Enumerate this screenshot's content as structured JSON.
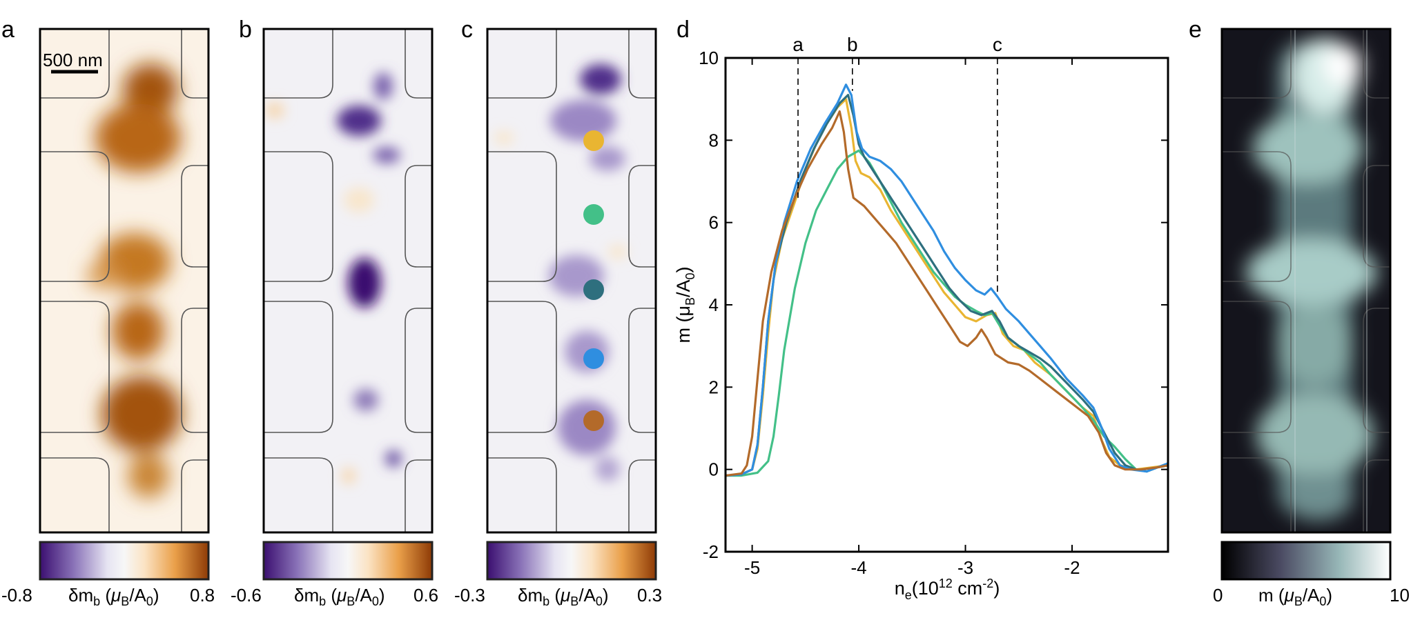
{
  "panels": {
    "a": {
      "label": "a",
      "scalebar": "500 nm",
      "cb_min": "-0.8",
      "cb_max": "0.8",
      "cb_label": "δm",
      "cb_sub": "b",
      "cb_unit_open": " (",
      "cb_mu": "μ",
      "cb_mu_sub": "B",
      "cb_slash": "/A",
      "cb_zero": "0",
      "cb_close": ")"
    },
    "b": {
      "label": "b",
      "cb_min": "-0.6",
      "cb_max": "0.6",
      "cb_label": "δm",
      "cb_sub": "b",
      "cb_unit_open": " (",
      "cb_mu": "μ",
      "cb_mu_sub": "B",
      "cb_slash": "/A",
      "cb_zero": "0",
      "cb_close": ")"
    },
    "c": {
      "label": "c",
      "cb_min": "-0.3",
      "cb_max": "0.3",
      "cb_label": "δm",
      "cb_sub": "b",
      "cb_unit_open": " (",
      "cb_mu": "μ",
      "cb_mu_sub": "B",
      "cb_slash": "/A",
      "cb_zero": "0",
      "cb_close": ")"
    },
    "d": {
      "label": "d"
    },
    "e": {
      "label": "e",
      "cb_min": "0",
      "cb_max": "10",
      "cb_label": "m",
      "cb_unit_open": " (",
      "cb_mu": "μ",
      "cb_mu_sub": "B",
      "cb_slash": "/A",
      "cb_zero": "0",
      "cb_close": ")"
    }
  },
  "colors": {
    "orange_dark": "#b4560c",
    "purple_dark": "#3b0f70",
    "bone_light": "#e8f5f2",
    "axis": "#000000"
  },
  "chart_data": {
    "type": "line",
    "xlim": [
      -5.25,
      -1.1
    ],
    "ylim": [
      -2,
      10
    ],
    "xticks": [
      -5,
      -4,
      -3,
      -2
    ],
    "xtick_labels": [
      "-5",
      "-4",
      "-3",
      "-2"
    ],
    "yticks": [
      -2,
      0,
      2,
      4,
      6,
      8,
      10
    ],
    "ytick_labels": [
      "-2",
      "0",
      "2",
      "4",
      "6",
      "8",
      "10"
    ],
    "xlabel": {
      "main": "n",
      "sub": "e",
      "rest": "(10",
      "sup": "12",
      "unit": " cm",
      "sup2": "-2",
      "close": ")"
    },
    "ylabel": {
      "main": "m (μ",
      "sub": "B",
      "rest": "/A",
      "sub2": "0",
      "close": ")"
    },
    "markers": [
      {
        "label": "a",
        "x": -4.57,
        "y_top": 6.6
      },
      {
        "label": "b",
        "x": -4.06,
        "y_top": 9.2
      },
      {
        "label": "c",
        "x": -2.7,
        "y_top": 4.3
      }
    ],
    "series": [
      {
        "name": "yellow",
        "color": "#e9b532",
        "points": [
          [
            -5.25,
            -0.15
          ],
          [
            -5.1,
            -0.12
          ],
          [
            -5.0,
            0.0
          ],
          [
            -4.95,
            0.5
          ],
          [
            -4.9,
            1.8
          ],
          [
            -4.85,
            3.3
          ],
          [
            -4.8,
            4.6
          ],
          [
            -4.72,
            5.6
          ],
          [
            -4.6,
            6.5
          ],
          [
            -4.5,
            7.3
          ],
          [
            -4.4,
            7.9
          ],
          [
            -4.3,
            8.4
          ],
          [
            -4.2,
            8.8
          ],
          [
            -4.12,
            9.0
          ],
          [
            -4.07,
            8.3
          ],
          [
            -4.03,
            7.5
          ],
          [
            -3.98,
            7.2
          ],
          [
            -3.9,
            7.1
          ],
          [
            -3.8,
            6.8
          ],
          [
            -3.7,
            6.3
          ],
          [
            -3.6,
            5.9
          ],
          [
            -3.5,
            5.5
          ],
          [
            -3.4,
            5.1
          ],
          [
            -3.3,
            4.7
          ],
          [
            -3.2,
            4.3
          ],
          [
            -3.1,
            4.0
          ],
          [
            -3.0,
            3.7
          ],
          [
            -2.9,
            3.6
          ],
          [
            -2.8,
            3.75
          ],
          [
            -2.72,
            3.8
          ],
          [
            -2.65,
            3.3
          ],
          [
            -2.55,
            3.0
          ],
          [
            -2.45,
            2.9
          ],
          [
            -2.35,
            2.6
          ],
          [
            -2.2,
            2.3
          ],
          [
            -2.05,
            1.9
          ],
          [
            -1.9,
            1.5
          ],
          [
            -1.8,
            1.3
          ],
          [
            -1.72,
            0.7
          ],
          [
            -1.65,
            0.3
          ],
          [
            -1.55,
            0.1
          ],
          [
            -1.4,
            0.0
          ],
          [
            -1.25,
            0.05
          ],
          [
            -1.1,
            0.1
          ]
        ]
      },
      {
        "name": "green",
        "color": "#43c088",
        "points": [
          [
            -5.25,
            -0.15
          ],
          [
            -5.1,
            -0.15
          ],
          [
            -4.95,
            -0.08
          ],
          [
            -4.85,
            0.2
          ],
          [
            -4.8,
            0.8
          ],
          [
            -4.75,
            1.8
          ],
          [
            -4.7,
            2.9
          ],
          [
            -4.6,
            4.4
          ],
          [
            -4.5,
            5.5
          ],
          [
            -4.4,
            6.3
          ],
          [
            -4.3,
            6.8
          ],
          [
            -4.2,
            7.3
          ],
          [
            -4.1,
            7.6
          ],
          [
            -4.0,
            7.75
          ],
          [
            -3.9,
            7.45
          ],
          [
            -3.8,
            7.0
          ],
          [
            -3.7,
            6.5
          ],
          [
            -3.6,
            6.0
          ],
          [
            -3.5,
            5.6
          ],
          [
            -3.4,
            5.2
          ],
          [
            -3.3,
            4.8
          ],
          [
            -3.2,
            4.5
          ],
          [
            -3.1,
            4.2
          ],
          [
            -3.0,
            4.0
          ],
          [
            -2.9,
            3.85
          ],
          [
            -2.82,
            3.75
          ],
          [
            -2.75,
            3.8
          ],
          [
            -2.68,
            3.5
          ],
          [
            -2.6,
            3.2
          ],
          [
            -2.5,
            3.0
          ],
          [
            -2.4,
            2.8
          ],
          [
            -2.3,
            2.6
          ],
          [
            -2.2,
            2.3
          ],
          [
            -2.05,
            1.9
          ],
          [
            -1.9,
            1.5
          ],
          [
            -1.8,
            1.2
          ],
          [
            -1.7,
            0.8
          ],
          [
            -1.6,
            0.55
          ],
          [
            -1.5,
            0.25
          ],
          [
            -1.4,
            0.0
          ],
          [
            -1.3,
            -0.05
          ],
          [
            -1.2,
            0.05
          ],
          [
            -1.1,
            0.1
          ]
        ]
      },
      {
        "name": "teal",
        "color": "#2e6f7e",
        "points": [
          [
            -5.25,
            -0.15
          ],
          [
            -5.1,
            -0.12
          ],
          [
            -5.0,
            0.0
          ],
          [
            -4.95,
            0.6
          ],
          [
            -4.9,
            2.0
          ],
          [
            -4.85,
            3.6
          ],
          [
            -4.78,
            5.0
          ],
          [
            -4.68,
            6.0
          ],
          [
            -4.55,
            7.0
          ],
          [
            -4.42,
            7.8
          ],
          [
            -4.3,
            8.4
          ],
          [
            -4.18,
            8.9
          ],
          [
            -4.1,
            9.1
          ],
          [
            -4.05,
            8.6
          ],
          [
            -4.0,
            7.9
          ],
          [
            -3.95,
            7.6
          ],
          [
            -3.85,
            7.2
          ],
          [
            -3.75,
            6.8
          ],
          [
            -3.65,
            6.4
          ],
          [
            -3.55,
            6.0
          ],
          [
            -3.45,
            5.6
          ],
          [
            -3.35,
            5.2
          ],
          [
            -3.25,
            4.8
          ],
          [
            -3.15,
            4.4
          ],
          [
            -3.05,
            4.1
          ],
          [
            -2.95,
            3.85
          ],
          [
            -2.85,
            3.75
          ],
          [
            -2.75,
            3.85
          ],
          [
            -2.68,
            3.6
          ],
          [
            -2.6,
            3.2
          ],
          [
            -2.5,
            3.0
          ],
          [
            -2.4,
            2.85
          ],
          [
            -2.3,
            2.7
          ],
          [
            -2.2,
            2.5
          ],
          [
            -2.05,
            2.1
          ],
          [
            -1.9,
            1.7
          ],
          [
            -1.8,
            1.4
          ],
          [
            -1.7,
            0.9
          ],
          [
            -1.6,
            0.4
          ],
          [
            -1.5,
            0.1
          ],
          [
            -1.4,
            0.0
          ],
          [
            -1.3,
            -0.05
          ],
          [
            -1.2,
            0.05
          ],
          [
            -1.1,
            0.1
          ]
        ]
      },
      {
        "name": "blue",
        "color": "#2f8ee0",
        "points": [
          [
            -5.25,
            -0.15
          ],
          [
            -5.1,
            -0.12
          ],
          [
            -5.0,
            0.0
          ],
          [
            -4.95,
            0.6
          ],
          [
            -4.9,
            2.0
          ],
          [
            -4.85,
            3.6
          ],
          [
            -4.78,
            5.0
          ],
          [
            -4.7,
            6.0
          ],
          [
            -4.58,
            7.0
          ],
          [
            -4.45,
            7.8
          ],
          [
            -4.32,
            8.4
          ],
          [
            -4.2,
            8.9
          ],
          [
            -4.12,
            9.35
          ],
          [
            -4.07,
            9.1
          ],
          [
            -4.02,
            8.2
          ],
          [
            -3.97,
            7.8
          ],
          [
            -3.9,
            7.6
          ],
          [
            -3.8,
            7.5
          ],
          [
            -3.7,
            7.3
          ],
          [
            -3.6,
            7.0
          ],
          [
            -3.5,
            6.6
          ],
          [
            -3.4,
            6.2
          ],
          [
            -3.3,
            5.8
          ],
          [
            -3.2,
            5.3
          ],
          [
            -3.1,
            4.9
          ],
          [
            -3.0,
            4.6
          ],
          [
            -2.9,
            4.35
          ],
          [
            -2.82,
            4.25
          ],
          [
            -2.76,
            4.4
          ],
          [
            -2.7,
            4.2
          ],
          [
            -2.62,
            3.9
          ],
          [
            -2.5,
            3.6
          ],
          [
            -2.4,
            3.3
          ],
          [
            -2.3,
            3.0
          ],
          [
            -2.2,
            2.7
          ],
          [
            -2.05,
            2.2
          ],
          [
            -1.9,
            1.8
          ],
          [
            -1.8,
            1.5
          ],
          [
            -1.72,
            1.0
          ],
          [
            -1.65,
            0.5
          ],
          [
            -1.55,
            0.1
          ],
          [
            -1.45,
            0.0
          ],
          [
            -1.3,
            -0.05
          ],
          [
            -1.2,
            0.05
          ],
          [
            -1.1,
            0.15
          ]
        ]
      },
      {
        "name": "brown",
        "color": "#b36a2a",
        "points": [
          [
            -5.25,
            -0.15
          ],
          [
            -5.1,
            -0.1
          ],
          [
            -5.05,
            0.1
          ],
          [
            -5.0,
            0.8
          ],
          [
            -4.95,
            2.2
          ],
          [
            -4.9,
            3.6
          ],
          [
            -4.82,
            4.8
          ],
          [
            -4.72,
            5.8
          ],
          [
            -4.6,
            6.6
          ],
          [
            -4.48,
            7.3
          ],
          [
            -4.35,
            7.9
          ],
          [
            -4.25,
            8.3
          ],
          [
            -4.18,
            8.7
          ],
          [
            -4.14,
            8.2
          ],
          [
            -4.1,
            7.3
          ],
          [
            -4.05,
            6.6
          ],
          [
            -3.95,
            6.4
          ],
          [
            -3.85,
            6.1
          ],
          [
            -3.75,
            5.8
          ],
          [
            -3.65,
            5.5
          ],
          [
            -3.55,
            5.1
          ],
          [
            -3.45,
            4.7
          ],
          [
            -3.35,
            4.3
          ],
          [
            -3.25,
            3.9
          ],
          [
            -3.15,
            3.5
          ],
          [
            -3.05,
            3.1
          ],
          [
            -2.98,
            3.0
          ],
          [
            -2.9,
            3.2
          ],
          [
            -2.85,
            3.4
          ],
          [
            -2.8,
            3.2
          ],
          [
            -2.72,
            2.8
          ],
          [
            -2.6,
            2.6
          ],
          [
            -2.5,
            2.55
          ],
          [
            -2.4,
            2.4
          ],
          [
            -2.3,
            2.2
          ],
          [
            -2.15,
            1.9
          ],
          [
            -2.0,
            1.6
          ],
          [
            -1.85,
            1.3
          ],
          [
            -1.75,
            0.9
          ],
          [
            -1.68,
            0.4
          ],
          [
            -1.6,
            0.1
          ],
          [
            -1.5,
            0.0
          ],
          [
            -1.35,
            0.0
          ],
          [
            -1.2,
            0.05
          ],
          [
            -1.1,
            0.1
          ]
        ]
      }
    ]
  },
  "dots": [
    {
      "color": "#e9b532"
    },
    {
      "color": "#43c088"
    },
    {
      "color": "#2e6f7e"
    },
    {
      "color": "#2f8ee0"
    },
    {
      "color": "#b36a2a"
    }
  ]
}
